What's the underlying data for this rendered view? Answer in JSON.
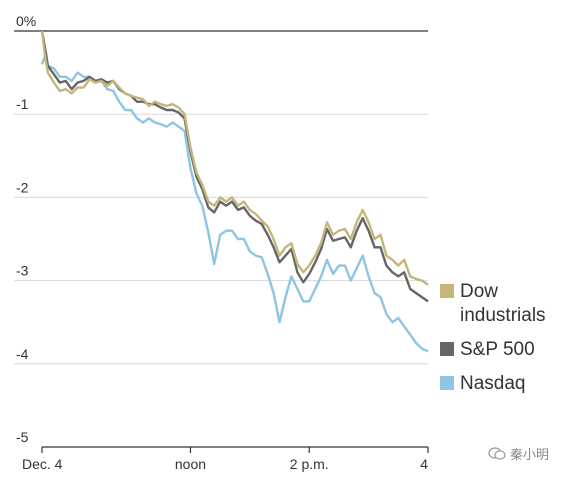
{
  "chart_data": {
    "type": "line",
    "title": "",
    "xlabel": "",
    "ylabel": "",
    "ylim": [
      -5,
      0
    ],
    "yticks": [
      0,
      -1,
      -2,
      -3,
      -4,
      -5
    ],
    "ytick_labels": [
      "0%",
      "-1",
      "-2",
      "-3",
      "-4",
      "-5"
    ],
    "x_ticks": [
      {
        "value": 9.5,
        "label": "Dec. 4"
      },
      {
        "value": 12,
        "label": "noon"
      },
      {
        "value": 14,
        "label": "2 p.m."
      },
      {
        "value": 16,
        "label": "4"
      }
    ],
    "xlim": [
      9.5,
      16
    ],
    "grid": true,
    "legend_position": "right",
    "series": [
      {
        "name": "Dow industrials",
        "color": "#c4b57a",
        "points": [
          [
            9.5,
            0.0
          ],
          [
            9.55,
            -0.3
          ],
          [
            9.6,
            -0.5
          ],
          [
            9.7,
            -0.62
          ],
          [
            9.8,
            -0.72
          ],
          [
            9.9,
            -0.7
          ],
          [
            10.0,
            -0.75
          ],
          [
            10.1,
            -0.68
          ],
          [
            10.2,
            -0.68
          ],
          [
            10.3,
            -0.58
          ],
          [
            10.4,
            -0.62
          ],
          [
            10.5,
            -0.6
          ],
          [
            10.6,
            -0.66
          ],
          [
            10.7,
            -0.6
          ],
          [
            10.8,
            -0.68
          ],
          [
            10.9,
            -0.75
          ],
          [
            11.0,
            -0.78
          ],
          [
            11.1,
            -0.8
          ],
          [
            11.2,
            -0.82
          ],
          [
            11.3,
            -0.9
          ],
          [
            11.4,
            -0.85
          ],
          [
            11.5,
            -0.88
          ],
          [
            11.6,
            -0.9
          ],
          [
            11.7,
            -0.88
          ],
          [
            11.8,
            -0.92
          ],
          [
            11.9,
            -1.0
          ],
          [
            12.0,
            -1.4
          ],
          [
            12.1,
            -1.7
          ],
          [
            12.2,
            -1.85
          ],
          [
            12.3,
            -2.05
          ],
          [
            12.4,
            -2.1
          ],
          [
            12.5,
            -2.0
          ],
          [
            12.6,
            -2.05
          ],
          [
            12.7,
            -2.0
          ],
          [
            12.8,
            -2.1
          ],
          [
            12.9,
            -2.05
          ],
          [
            13.0,
            -2.15
          ],
          [
            13.1,
            -2.2
          ],
          [
            13.2,
            -2.28
          ],
          [
            13.3,
            -2.35
          ],
          [
            13.4,
            -2.5
          ],
          [
            13.5,
            -2.7
          ],
          [
            13.6,
            -2.6
          ],
          [
            13.7,
            -2.55
          ],
          [
            13.8,
            -2.8
          ],
          [
            13.9,
            -2.9
          ],
          [
            14.0,
            -2.82
          ],
          [
            14.1,
            -2.7
          ],
          [
            14.2,
            -2.55
          ],
          [
            14.3,
            -2.3
          ],
          [
            14.4,
            -2.45
          ],
          [
            14.5,
            -2.4
          ],
          [
            14.6,
            -2.38
          ],
          [
            14.7,
            -2.5
          ],
          [
            14.8,
            -2.3
          ],
          [
            14.9,
            -2.15
          ],
          [
            15.0,
            -2.3
          ],
          [
            15.1,
            -2.5
          ],
          [
            15.2,
            -2.45
          ],
          [
            15.3,
            -2.7
          ],
          [
            15.4,
            -2.75
          ],
          [
            15.5,
            -2.82
          ],
          [
            15.6,
            -2.75
          ],
          [
            15.7,
            -2.95
          ],
          [
            15.8,
            -2.98
          ],
          [
            15.9,
            -3.0
          ],
          [
            16.0,
            -3.05
          ]
        ]
      },
      {
        "name": "S&P 500",
        "color": "#666666",
        "points": [
          [
            9.5,
            0.0
          ],
          [
            9.55,
            -0.2
          ],
          [
            9.6,
            -0.42
          ],
          [
            9.7,
            -0.52
          ],
          [
            9.8,
            -0.62
          ],
          [
            9.9,
            -0.6
          ],
          [
            10.0,
            -0.7
          ],
          [
            10.1,
            -0.62
          ],
          [
            10.2,
            -0.6
          ],
          [
            10.3,
            -0.55
          ],
          [
            10.4,
            -0.6
          ],
          [
            10.5,
            -0.58
          ],
          [
            10.6,
            -0.62
          ],
          [
            10.7,
            -0.6
          ],
          [
            10.8,
            -0.7
          ],
          [
            10.9,
            -0.75
          ],
          [
            11.0,
            -0.78
          ],
          [
            11.1,
            -0.85
          ],
          [
            11.2,
            -0.85
          ],
          [
            11.3,
            -0.88
          ],
          [
            11.4,
            -0.88
          ],
          [
            11.5,
            -0.92
          ],
          [
            11.6,
            -0.95
          ],
          [
            11.7,
            -0.95
          ],
          [
            11.8,
            -0.98
          ],
          [
            11.9,
            -1.05
          ],
          [
            12.0,
            -1.45
          ],
          [
            12.1,
            -1.75
          ],
          [
            12.2,
            -1.9
          ],
          [
            12.3,
            -2.12
          ],
          [
            12.4,
            -2.18
          ],
          [
            12.5,
            -2.05
          ],
          [
            12.6,
            -2.1
          ],
          [
            12.7,
            -2.05
          ],
          [
            12.8,
            -2.15
          ],
          [
            12.9,
            -2.12
          ],
          [
            13.0,
            -2.22
          ],
          [
            13.1,
            -2.28
          ],
          [
            13.2,
            -2.32
          ],
          [
            13.3,
            -2.45
          ],
          [
            13.4,
            -2.6
          ],
          [
            13.5,
            -2.78
          ],
          [
            13.6,
            -2.7
          ],
          [
            13.7,
            -2.62
          ],
          [
            13.8,
            -2.9
          ],
          [
            13.9,
            -3.02
          ],
          [
            14.0,
            -2.92
          ],
          [
            14.1,
            -2.78
          ],
          [
            14.2,
            -2.62
          ],
          [
            14.3,
            -2.38
          ],
          [
            14.4,
            -2.52
          ],
          [
            14.5,
            -2.5
          ],
          [
            14.6,
            -2.48
          ],
          [
            14.7,
            -2.6
          ],
          [
            14.8,
            -2.4
          ],
          [
            14.9,
            -2.25
          ],
          [
            15.0,
            -2.4
          ],
          [
            15.1,
            -2.6
          ],
          [
            15.2,
            -2.6
          ],
          [
            15.3,
            -2.82
          ],
          [
            15.4,
            -2.9
          ],
          [
            15.5,
            -2.95
          ],
          [
            15.6,
            -2.9
          ],
          [
            15.7,
            -3.1
          ],
          [
            15.8,
            -3.15
          ],
          [
            15.9,
            -3.2
          ],
          [
            16.0,
            -3.25
          ]
        ]
      },
      {
        "name": "Nasdaq",
        "color": "#8fc4e2",
        "points": [
          [
            9.5,
            -0.4
          ],
          [
            9.55,
            -0.3
          ],
          [
            9.6,
            -0.42
          ],
          [
            9.7,
            -0.45
          ],
          [
            9.8,
            -0.55
          ],
          [
            9.9,
            -0.55
          ],
          [
            10.0,
            -0.6
          ],
          [
            10.1,
            -0.5
          ],
          [
            10.2,
            -0.55
          ],
          [
            10.3,
            -0.55
          ],
          [
            10.4,
            -0.62
          ],
          [
            10.5,
            -0.6
          ],
          [
            10.6,
            -0.7
          ],
          [
            10.7,
            -0.72
          ],
          [
            10.8,
            -0.85
          ],
          [
            10.9,
            -0.95
          ],
          [
            11.0,
            -0.95
          ],
          [
            11.1,
            -1.05
          ],
          [
            11.2,
            -1.1
          ],
          [
            11.3,
            -1.05
          ],
          [
            11.4,
            -1.1
          ],
          [
            11.5,
            -1.12
          ],
          [
            11.6,
            -1.15
          ],
          [
            11.7,
            -1.1
          ],
          [
            11.8,
            -1.15
          ],
          [
            11.9,
            -1.2
          ],
          [
            12.0,
            -1.65
          ],
          [
            12.1,
            -1.95
          ],
          [
            12.2,
            -2.1
          ],
          [
            12.3,
            -2.42
          ],
          [
            12.4,
            -2.8
          ],
          [
            12.5,
            -2.45
          ],
          [
            12.6,
            -2.4
          ],
          [
            12.7,
            -2.4
          ],
          [
            12.8,
            -2.5
          ],
          [
            12.9,
            -2.5
          ],
          [
            13.0,
            -2.65
          ],
          [
            13.1,
            -2.7
          ],
          [
            13.2,
            -2.72
          ],
          [
            13.3,
            -2.92
          ],
          [
            13.4,
            -3.15
          ],
          [
            13.5,
            -3.5
          ],
          [
            13.6,
            -3.2
          ],
          [
            13.7,
            -2.95
          ],
          [
            13.8,
            -3.1
          ],
          [
            13.9,
            -3.25
          ],
          [
            14.0,
            -3.25
          ],
          [
            14.1,
            -3.1
          ],
          [
            14.2,
            -2.95
          ],
          [
            14.3,
            -2.75
          ],
          [
            14.4,
            -2.92
          ],
          [
            14.5,
            -2.82
          ],
          [
            14.6,
            -2.82
          ],
          [
            14.7,
            -3.0
          ],
          [
            14.8,
            -2.85
          ],
          [
            14.9,
            -2.7
          ],
          [
            15.0,
            -2.95
          ],
          [
            15.1,
            -3.15
          ],
          [
            15.2,
            -3.2
          ],
          [
            15.3,
            -3.4
          ],
          [
            15.4,
            -3.5
          ],
          [
            15.5,
            -3.45
          ],
          [
            15.6,
            -3.55
          ],
          [
            15.7,
            -3.65
          ],
          [
            15.8,
            -3.75
          ],
          [
            15.9,
            -3.82
          ],
          [
            16.0,
            -3.85
          ]
        ]
      }
    ]
  },
  "legend": [
    {
      "label": "Dow industrials",
      "color": "#c4b57a"
    },
    {
      "label": "S&P 500",
      "color": "#666666"
    },
    {
      "label": "Nasdaq",
      "color": "#8fc4e2"
    }
  ],
  "watermark": {
    "text": "秦小明",
    "icon": "wechat-icon"
  }
}
